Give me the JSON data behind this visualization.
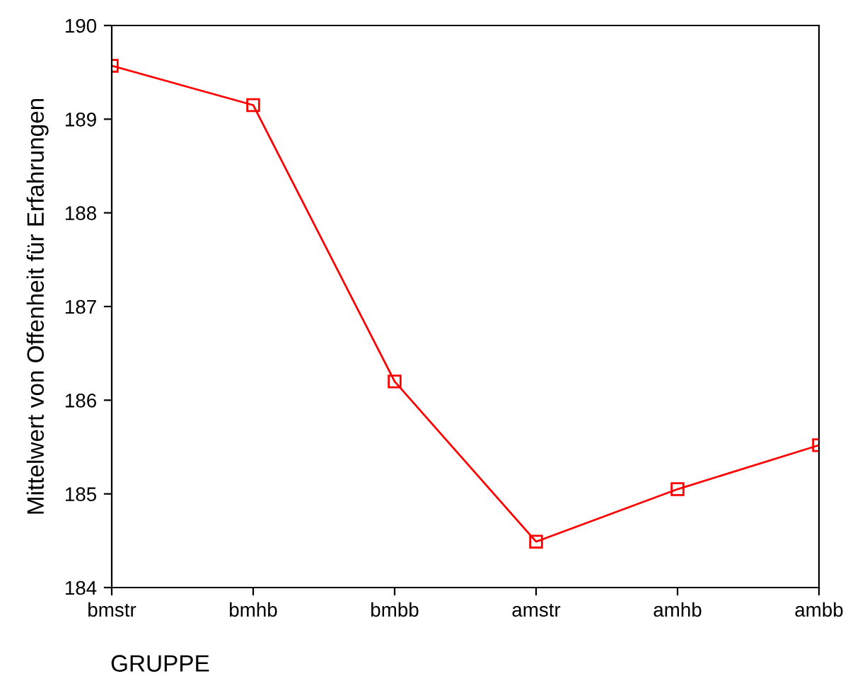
{
  "chart_data": {
    "type": "line",
    "categories": [
      "bmstr",
      "bmhb",
      "bmbb",
      "amstr",
      "amhb",
      "ambb"
    ],
    "series": [
      {
        "color": "#ff0000",
        "values": [
          189.57,
          189.15,
          186.2,
          184.49,
          185.05,
          185.52
        ]
      }
    ],
    "xlabel": "GRUPPE",
    "ylabel": "Mittelwert von Offenheit für Erfahrungen",
    "ylim": [
      184,
      190
    ],
    "yticks": [
      184,
      185,
      186,
      187,
      188,
      189,
      190
    ],
    "grid": false,
    "legend": false,
    "marker": "square",
    "line_style": "solid"
  }
}
